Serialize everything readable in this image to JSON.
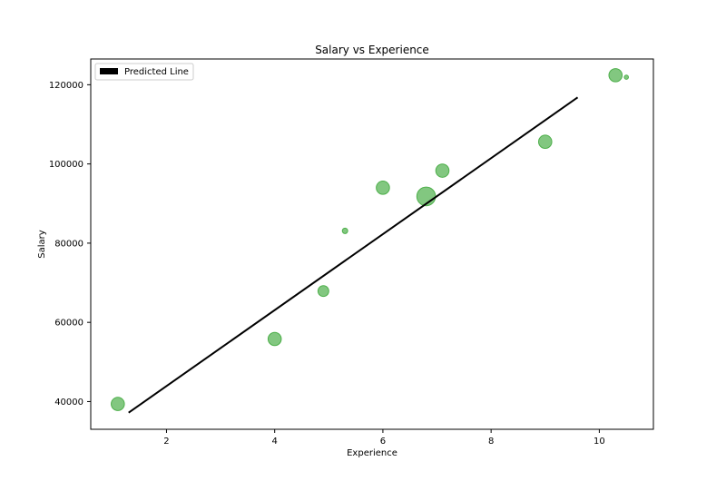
{
  "chart_data": {
    "type": "scatter",
    "title": "Salary vs Experience",
    "xlabel": "Experience",
    "ylabel": "Salary",
    "xlim": [
      0.6,
      11.0
    ],
    "ylim": [
      33000,
      126500
    ],
    "xticks": [
      2,
      4,
      6,
      8,
      10
    ],
    "yticks": [
      40000,
      60000,
      80000,
      100000,
      120000
    ],
    "grid": false,
    "legend": {
      "position": "top-left",
      "entries": [
        "Predicted Line"
      ]
    },
    "colors": {
      "points": "#4daf4a",
      "line": "#000000"
    },
    "points": [
      {
        "x": 1.1,
        "y": 39400,
        "size": 3
      },
      {
        "x": 4.0,
        "y": 55800,
        "size": 3
      },
      {
        "x": 4.9,
        "y": 67900,
        "size": 2
      },
      {
        "x": 5.3,
        "y": 83100,
        "size": 0.5
      },
      {
        "x": 6.0,
        "y": 94000,
        "size": 3
      },
      {
        "x": 6.8,
        "y": 91800,
        "size": 6
      },
      {
        "x": 7.1,
        "y": 98300,
        "size": 3
      },
      {
        "x": 9.0,
        "y": 105600,
        "size": 3
      },
      {
        "x": 10.3,
        "y": 122400,
        "size": 3
      },
      {
        "x": 10.5,
        "y": 121900,
        "size": 0.3
      }
    ],
    "series": [
      {
        "name": "Predicted Line",
        "type": "line",
        "x": [
          1.3,
          9.6
        ],
        "y": [
          37200,
          116800
        ]
      }
    ]
  }
}
